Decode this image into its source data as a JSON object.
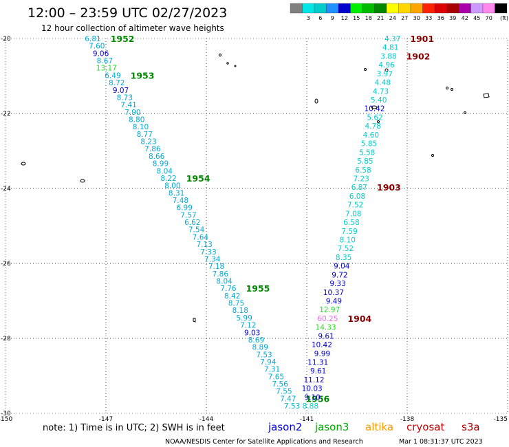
{
  "header": {
    "title": "12:00 – 23:59 UTC 02/27/2023",
    "subtitle": "12 hour collection of altimeter wave heights"
  },
  "legend": {
    "unit": "(ft)",
    "levels": [
      {
        "label": "",
        "color": "#808080"
      },
      {
        "label": "3",
        "color": "#00e6e6"
      },
      {
        "label": "6",
        "color": "#00cccc"
      },
      {
        "label": "9",
        "color": "#1e90ff"
      },
      {
        "label": "12",
        "color": "#0000cd"
      },
      {
        "label": "15",
        "color": "#00ee00"
      },
      {
        "label": "18",
        "color": "#00bb00"
      },
      {
        "label": "21",
        "color": "#008800"
      },
      {
        "label": "24",
        "color": "#ffff00"
      },
      {
        "label": "27",
        "color": "#ffd700"
      },
      {
        "label": "30",
        "color": "#ffa500"
      },
      {
        "label": "33",
        "color": "#ff2200"
      },
      {
        "label": "36",
        "color": "#dd0000"
      },
      {
        "label": "39",
        "color": "#aa0000"
      },
      {
        "label": "42",
        "color": "#aa00aa"
      },
      {
        "label": "45",
        "color": "#cc99ff"
      },
      {
        "label": "70",
        "color": "#ff88ee"
      },
      {
        "label": "",
        "color": "#000000"
      }
    ]
  },
  "map": {
    "lon_range": [
      -150,
      -135
    ],
    "lat_range": [
      -30,
      -20
    ],
    "lon_ticks": [
      "-150",
      "-147",
      "-144",
      "-141",
      "-138",
      "-135"
    ],
    "lat_ticks": [
      "-20",
      "-22",
      "-24",
      "-26",
      "-28",
      "-30"
    ]
  },
  "tracks": [
    {
      "satellite": "jason3",
      "color": "#00aad4",
      "start": [
        -147.15,
        -20.0
      ],
      "end": [
        -141.2,
        -29.8
      ],
      "values": [
        "6.81",
        "7.60",
        "9.06",
        "8.67",
        "13.17",
        "6.49",
        "8.72",
        "9.07",
        "8.73",
        "7.41",
        "7.90",
        "8.80",
        "8.10",
        "8.77",
        "8.23",
        "7.86",
        "8.66",
        "8.99",
        "8.04",
        "8.22",
        "8.00",
        "8.31",
        "7.48",
        "6.99",
        "7.57",
        "6.62",
        "7.54",
        "7.64",
        "7.13",
        "7.33",
        "7.34",
        "7.18",
        "7.86",
        "8.04",
        "7.76",
        "8.42",
        "8.75",
        "8.18",
        "5.99",
        "7.12",
        "9.03",
        "8.69",
        "8.89",
        "7.53",
        "7.94",
        "7.31",
        "7.65",
        "7.56",
        "7.55",
        "7.47",
        "7.53"
      ],
      "times": [
        {
          "label": "1952",
          "value_index": 0
        },
        {
          "label": "1953",
          "value_index": 5
        },
        {
          "label": "1954",
          "value_index": 19
        },
        {
          "label": "1955",
          "value_index": 34
        },
        {
          "label": "1956",
          "value_index": 49
        }
      ]
    },
    {
      "satellite": "cryosat",
      "color": "#00cccc",
      "start": [
        -138.2,
        -20.0
      ],
      "end": [
        -140.65,
        -29.8
      ],
      "values": [
        "4.37",
        "4.81",
        "3.88",
        "4.96",
        "3.97",
        "4.48",
        "4.73",
        "5.40",
        "10.42",
        "5.62",
        "4.78",
        "4.60",
        "5.85",
        "5.58",
        "5.85",
        "6.58",
        "7.23",
        "6.87",
        "6.08",
        "7.52",
        "7.08",
        "6.58",
        "7.59",
        "8.10",
        "7.52",
        "8.35",
        "9.04",
        "9.72",
        "9.33",
        "10.37",
        "9.49",
        "12.97",
        "60.25",
        "14.33",
        "9.61",
        "10.42",
        "9.99",
        "11.31",
        "9.61",
        "11.12",
        "10.03",
        "9.10",
        "8.88"
      ],
      "times": [
        {
          "label": "1901",
          "value_index": 0
        },
        {
          "label": "1902",
          "value_index": 2
        },
        {
          "label": "1903",
          "value_index": 17
        },
        {
          "label": "1904",
          "value_index": 32
        }
      ]
    }
  ],
  "note": "note: 1) Time is in UTC; 2) SWH is in feet",
  "satellites": [
    {
      "label": "jason2",
      "color": "#0000dd"
    },
    {
      "label": "jason3",
      "color": "#00aa00"
    },
    {
      "label": "altika",
      "color": "#ff9900"
    },
    {
      "label": "cryosat",
      "color": "#cc0000"
    },
    {
      "label": "s3a",
      "color": "#aa0000"
    }
  ],
  "credit": "NOAA/NESDIS Center for Satellite Applications and Research",
  "generated": "Mar  1 08:31:37 UTC 2023"
}
